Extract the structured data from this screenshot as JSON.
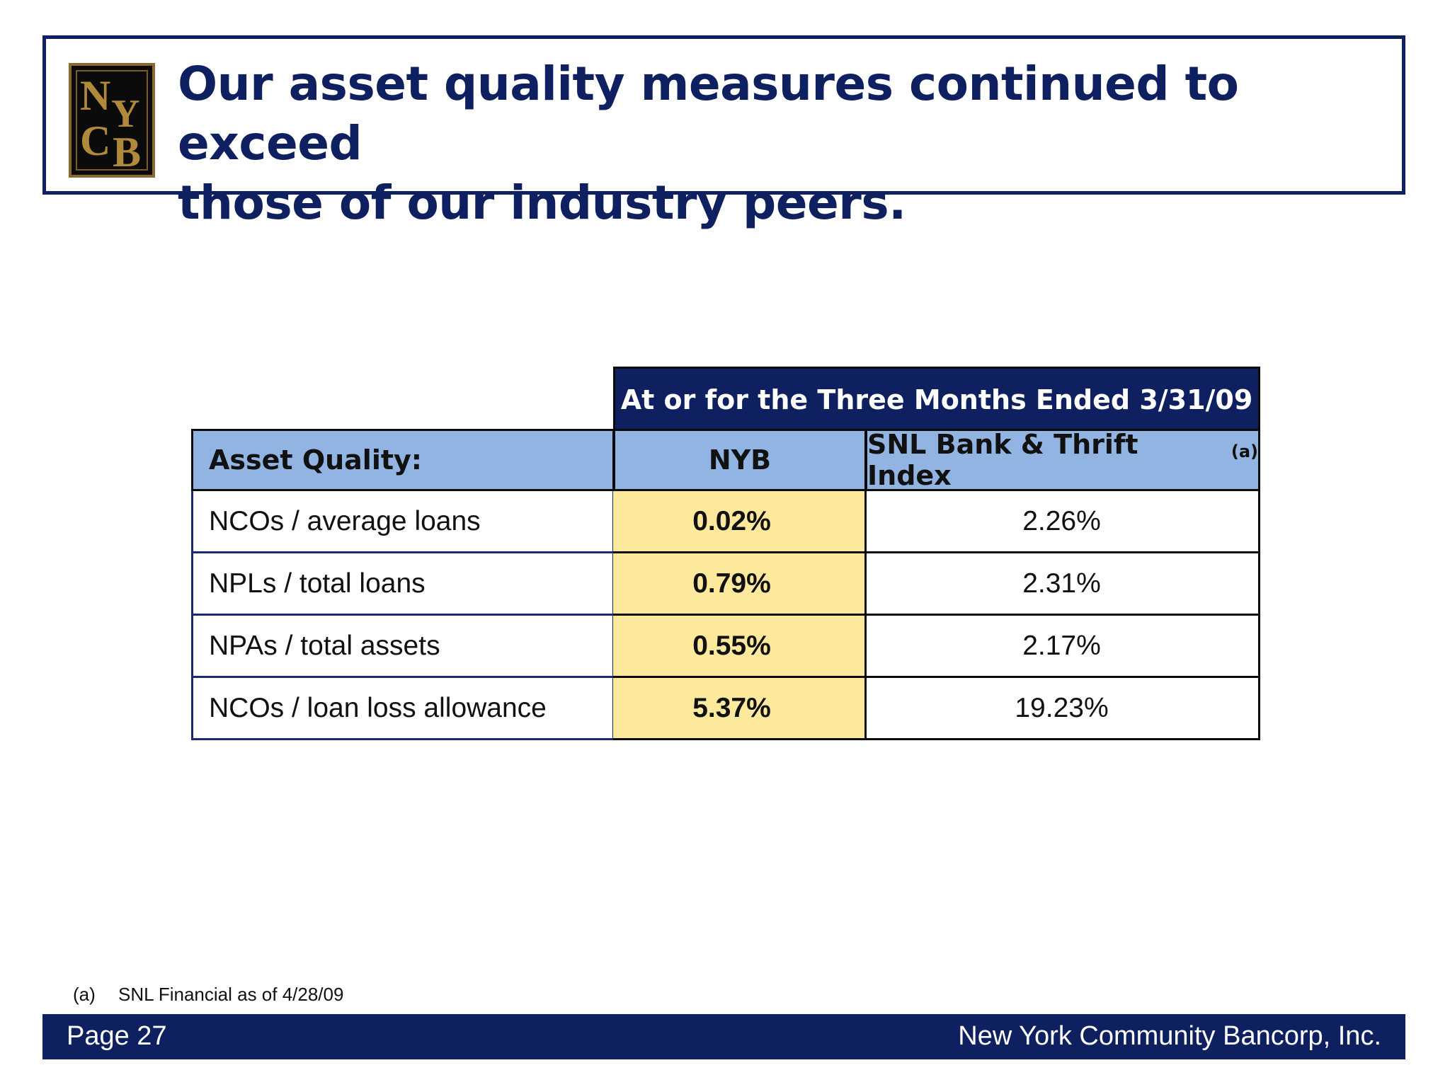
{
  "logo": {
    "letters": [
      "N",
      "Y",
      "C",
      "B"
    ],
    "alt": "NYCB logo"
  },
  "title": {
    "line1": "Our asset quality measures continued to exceed",
    "line2": "those of our industry peers."
  },
  "table": {
    "period_header": "At or for the Three Months Ended 3/31/09",
    "columns": {
      "label": "Asset Quality:",
      "nyb": "NYB",
      "snl": "SNL Bank & Thrift Index",
      "snl_note": "(a)"
    },
    "rows": [
      {
        "label": "NCOs / average loans",
        "nyb": "0.02%",
        "snl": "2.26%"
      },
      {
        "label": "NPLs / total loans",
        "nyb": "0.79%",
        "snl": "2.31%"
      },
      {
        "label": "NPAs / total assets",
        "nyb": "0.55%",
        "snl": "2.17%"
      },
      {
        "label": "NCOs / loan loss allowance",
        "nyb": "5.37%",
        "snl": "19.23%"
      }
    ]
  },
  "footnote": {
    "mark": "(a)",
    "text": "SNL Financial as of 4/28/09"
  },
  "footer": {
    "page": "Page 27",
    "company": "New York Community Bancorp, Inc."
  },
  "colors": {
    "navy": "#0f2060",
    "header_blue": "#92b4e2",
    "highlight_yellow": "#fce99c",
    "logo_gold": "#b08a3a"
  }
}
